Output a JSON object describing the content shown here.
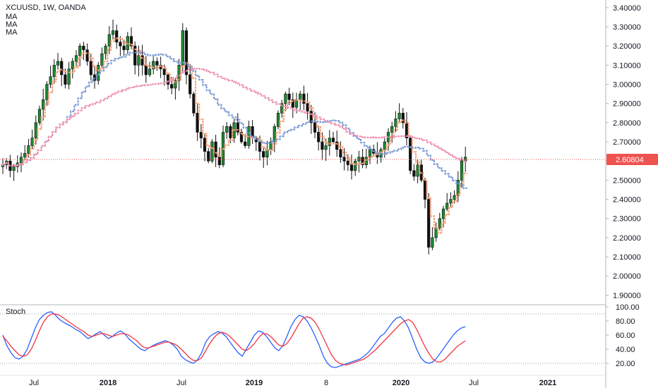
{
  "header": {
    "symbol_line": "XCUUSD, 1W, OANDA",
    "indicators": [
      "MA",
      "MA",
      "MA"
    ]
  },
  "stoch_label": "Stoch",
  "colors": {
    "up": "#1b8a2e",
    "down": "#111111",
    "ma_fast": "#f4a07a",
    "ma_mid": "#7b9bd6",
    "ma_slow": "#ef8fb0",
    "stoch_k": "#2962ff",
    "stoch_d": "#f23645",
    "price_line": "#ef5350",
    "grid_dots": "#9aa0a6"
  },
  "chart_data": [
    {
      "type": "candlestick",
      "title": "XCUUSD, 1W, OANDA",
      "x_ticks": [
        "Jul",
        "2018",
        "Jul",
        "2019",
        "8",
        "2020",
        "Jul",
        "2021"
      ],
      "y_ticks": [
        "3.40000",
        "3.30000",
        "3.20000",
        "3.10000",
        "3.00000",
        "2.90000",
        "2.80000",
        "2.70000",
        "2.60000",
        "2.50000",
        "2.40000",
        "2.30000",
        "2.20000",
        "2.10000",
        "2.00000",
        "1.90000"
      ],
      "ylim": [
        1.85,
        3.44
      ],
      "last_price": 2.60804,
      "last_price_label": "2.60804",
      "series_close": [
        2.58,
        2.6,
        2.55,
        2.57,
        2.59,
        2.62,
        2.64,
        2.68,
        2.72,
        2.8,
        2.87,
        2.92,
        3.0,
        3.04,
        3.1,
        3.12,
        3.05,
        3.0,
        3.08,
        3.12,
        3.15,
        3.2,
        3.18,
        3.12,
        3.05,
        3.02,
        3.1,
        3.16,
        3.2,
        3.26,
        3.28,
        3.22,
        3.2,
        3.18,
        3.25,
        3.2,
        3.1,
        3.15,
        3.1,
        3.05,
        3.08,
        3.12,
        3.1,
        3.08,
        3.05,
        3.0,
        2.98,
        3.02,
        3.1,
        3.28,
        3.05,
        2.95,
        2.85,
        2.75,
        2.72,
        2.65,
        2.6,
        2.7,
        2.62,
        2.58,
        2.75,
        2.78,
        2.72,
        2.8,
        2.75,
        2.7,
        2.68,
        2.78,
        2.72,
        2.7,
        2.65,
        2.62,
        2.66,
        2.7,
        2.78,
        2.85,
        2.9,
        2.95,
        2.92,
        2.88,
        2.92,
        2.95,
        2.9,
        2.86,
        2.8,
        2.75,
        2.7,
        2.66,
        2.68,
        2.72,
        2.7,
        2.66,
        2.62,
        2.6,
        2.58,
        2.55,
        2.6,
        2.62,
        2.58,
        2.62,
        2.66,
        2.64,
        2.62,
        2.66,
        2.7,
        2.75,
        2.78,
        2.82,
        2.85,
        2.8,
        2.72,
        2.55,
        2.52,
        2.58,
        2.5,
        2.4,
        2.15,
        2.2,
        2.25,
        2.3,
        2.35,
        2.38,
        2.4,
        2.42,
        2.5,
        2.6,
        2.62
      ],
      "moving_averages": [
        "MA",
        "MA",
        "MA"
      ]
    },
    {
      "type": "line",
      "title": "Stoch",
      "y_ticks": [
        "100.00",
        "80.00",
        "60.00",
        "40.00",
        "20.00"
      ],
      "ylim": [
        5,
        103
      ],
      "bands": [
        20,
        90
      ],
      "series": [
        {
          "values": [
            60,
            45,
            35,
            28,
            26,
            30,
            40,
            55,
            70,
            82,
            88,
            92,
            93,
            88,
            82,
            78,
            75,
            72,
            68,
            65,
            60,
            55,
            58,
            62,
            65,
            60,
            55,
            58,
            63,
            66,
            62,
            55,
            50,
            45,
            40,
            38,
            42,
            45,
            48,
            50,
            52,
            50,
            46,
            40,
            30,
            25,
            22,
            20,
            25,
            35,
            50,
            58,
            62,
            65,
            63,
            58,
            50,
            42,
            35,
            30,
            40,
            50,
            60,
            66,
            64,
            58,
            50,
            42,
            38,
            45,
            58,
            72,
            82,
            88,
            86,
            80,
            70,
            58,
            45,
            30,
            20,
            15,
            14,
            16,
            18,
            20,
            22,
            24,
            26,
            30,
            35,
            42,
            50,
            58,
            62,
            70,
            78,
            84,
            86,
            80,
            70,
            55,
            40,
            28,
            22,
            20,
            22,
            28,
            36,
            44,
            52,
            60,
            66,
            70,
            72
          ]
        },
        {
          "values": [
            58,
            52,
            44,
            38,
            32,
            30,
            32,
            40,
            52,
            66,
            78,
            86,
            90,
            90,
            88,
            84,
            80,
            76,
            72,
            68,
            65,
            60,
            58,
            60,
            62,
            62,
            60,
            58,
            60,
            62,
            62,
            60,
            56,
            52,
            46,
            42,
            42,
            44,
            46,
            48,
            50,
            50,
            48,
            45,
            40,
            34,
            28,
            24,
            24,
            28,
            38,
            48,
            56,
            62,
            64,
            62,
            58,
            52,
            46,
            40,
            38,
            42,
            48,
            56,
            62,
            62,
            58,
            52,
            46,
            44,
            48,
            56,
            66,
            76,
            84,
            86,
            84,
            78,
            68,
            56,
            44,
            32,
            24,
            20,
            18,
            18,
            20,
            22,
            24,
            26,
            30,
            35,
            40,
            46,
            52,
            58,
            64,
            70,
            76,
            80,
            82,
            78,
            68,
            56,
            44,
            34,
            26,
            22,
            22,
            26,
            32,
            38,
            44,
            48,
            52
          ]
        }
      ]
    }
  ]
}
